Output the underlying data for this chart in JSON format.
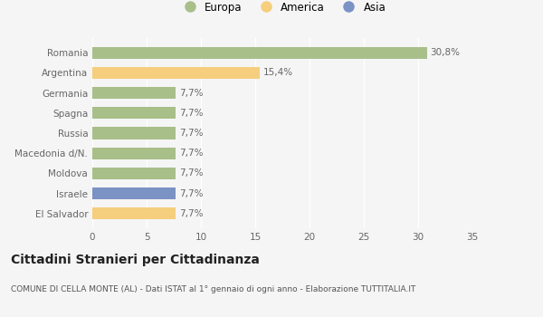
{
  "categories": [
    "El Salvador",
    "Israele",
    "Moldova",
    "Macedonia d/N.",
    "Russia",
    "Spagna",
    "Germania",
    "Argentina",
    "Romania"
  ],
  "values": [
    7.7,
    7.7,
    7.7,
    7.7,
    7.7,
    7.7,
    7.7,
    15.4,
    30.8
  ],
  "labels": [
    "7,7%",
    "7,7%",
    "7,7%",
    "7,7%",
    "7,7%",
    "7,7%",
    "7,7%",
    "15,4%",
    "30,8%"
  ],
  "colors": [
    "#f5ce7e",
    "#7b93c4",
    "#a8bf8a",
    "#a8bf8a",
    "#a8bf8a",
    "#a8bf8a",
    "#a8bf8a",
    "#f5ce7e",
    "#a8bf8a"
  ],
  "legend_labels": [
    "Europa",
    "America",
    "Asia"
  ],
  "legend_colors": [
    "#a8bf8a",
    "#f5ce7e",
    "#7b93c4"
  ],
  "xlim": [
    0,
    35
  ],
  "xticks": [
    0,
    5,
    10,
    15,
    20,
    25,
    30,
    35
  ],
  "title": "Cittadini Stranieri per Cittadinanza",
  "subtitle": "COMUNE DI CELLA MONTE (AL) - Dati ISTAT al 1° gennaio di ogni anno - Elaborazione TUTTITALIA.IT",
  "bg_color": "#f5f5f5",
  "bar_height": 0.6,
  "grid_color": "#ffffff",
  "label_fontsize": 7.5,
  "ytick_fontsize": 7.5,
  "xtick_fontsize": 7.5,
  "title_fontsize": 10,
  "subtitle_fontsize": 6.5
}
